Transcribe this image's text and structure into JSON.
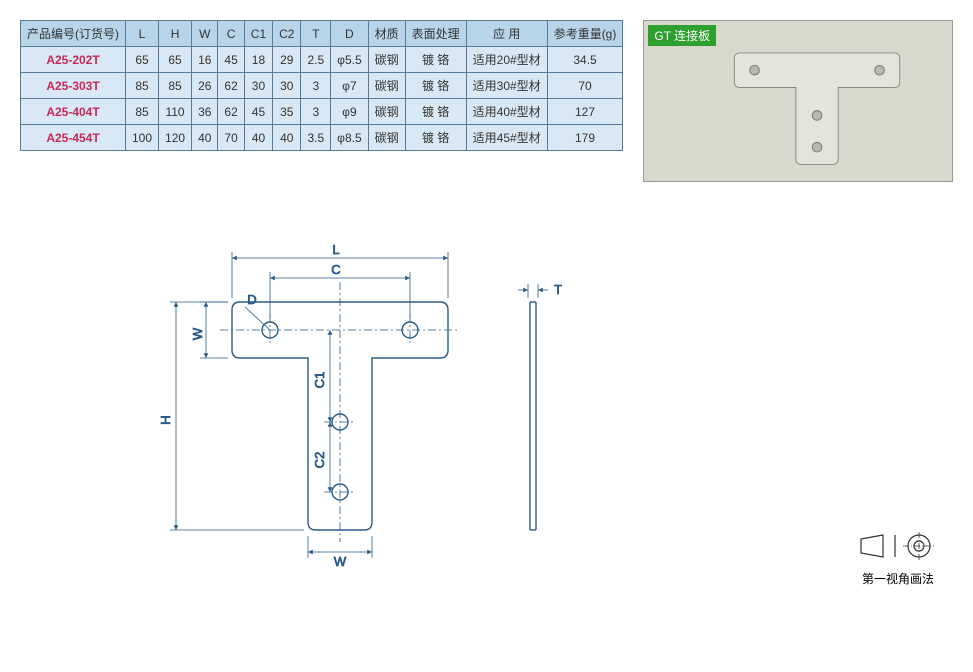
{
  "photo": {
    "label": "GT 连接板",
    "bg_color": "#d8d8cc",
    "plate_color": "#e8e8e0",
    "plate_stroke": "#888",
    "label_bg": "#2ea030",
    "label_color": "#ffffff"
  },
  "table": {
    "header_bg": "#b8d4e8",
    "cell_bg": "#d8e8f4",
    "border_color": "#5a7a9a",
    "partno_color": "#c8285a",
    "columns": [
      "产品编号(订货号)",
      "L",
      "H",
      "W",
      "C",
      "C1",
      "C2",
      "T",
      "D",
      "材质",
      "表面处理",
      "应  用",
      "参考重量(g)"
    ],
    "rows": [
      [
        "A25-202T",
        "65",
        "65",
        "16",
        "45",
        "18",
        "29",
        "2.5",
        "φ5.5",
        "碳钢",
        "镀 铬",
        "适用20#型材",
        "34.5"
      ],
      [
        "A25-303T",
        "85",
        "85",
        "26",
        "62",
        "30",
        "30",
        "3",
        "φ7",
        "碳钢",
        "镀 铬",
        "适用30#型材",
        "70"
      ],
      [
        "A25-404T",
        "85",
        "110",
        "36",
        "62",
        "45",
        "35",
        "3",
        "φ9",
        "碳钢",
        "镀 铬",
        "适用40#型材",
        "127"
      ],
      [
        "A25-454T",
        "100",
        "120",
        "40",
        "70",
        "40",
        "40",
        "3.5",
        "φ8.5",
        "碳钢",
        "镀 铬",
        "适用45#型材",
        "179"
      ]
    ]
  },
  "drawing": {
    "stroke_color": "#2a5c8a",
    "stroke_width": 1.2,
    "dim_color": "#2a5c8a",
    "center_dash": "4 2 1 2",
    "labels": {
      "L": "L",
      "C": "C",
      "H": "H",
      "W_top": "W",
      "W_bot": "W",
      "C1": "C1",
      "C2": "C2",
      "D": "D",
      "T": "T"
    }
  },
  "projection": {
    "label": "第一视角画法"
  }
}
